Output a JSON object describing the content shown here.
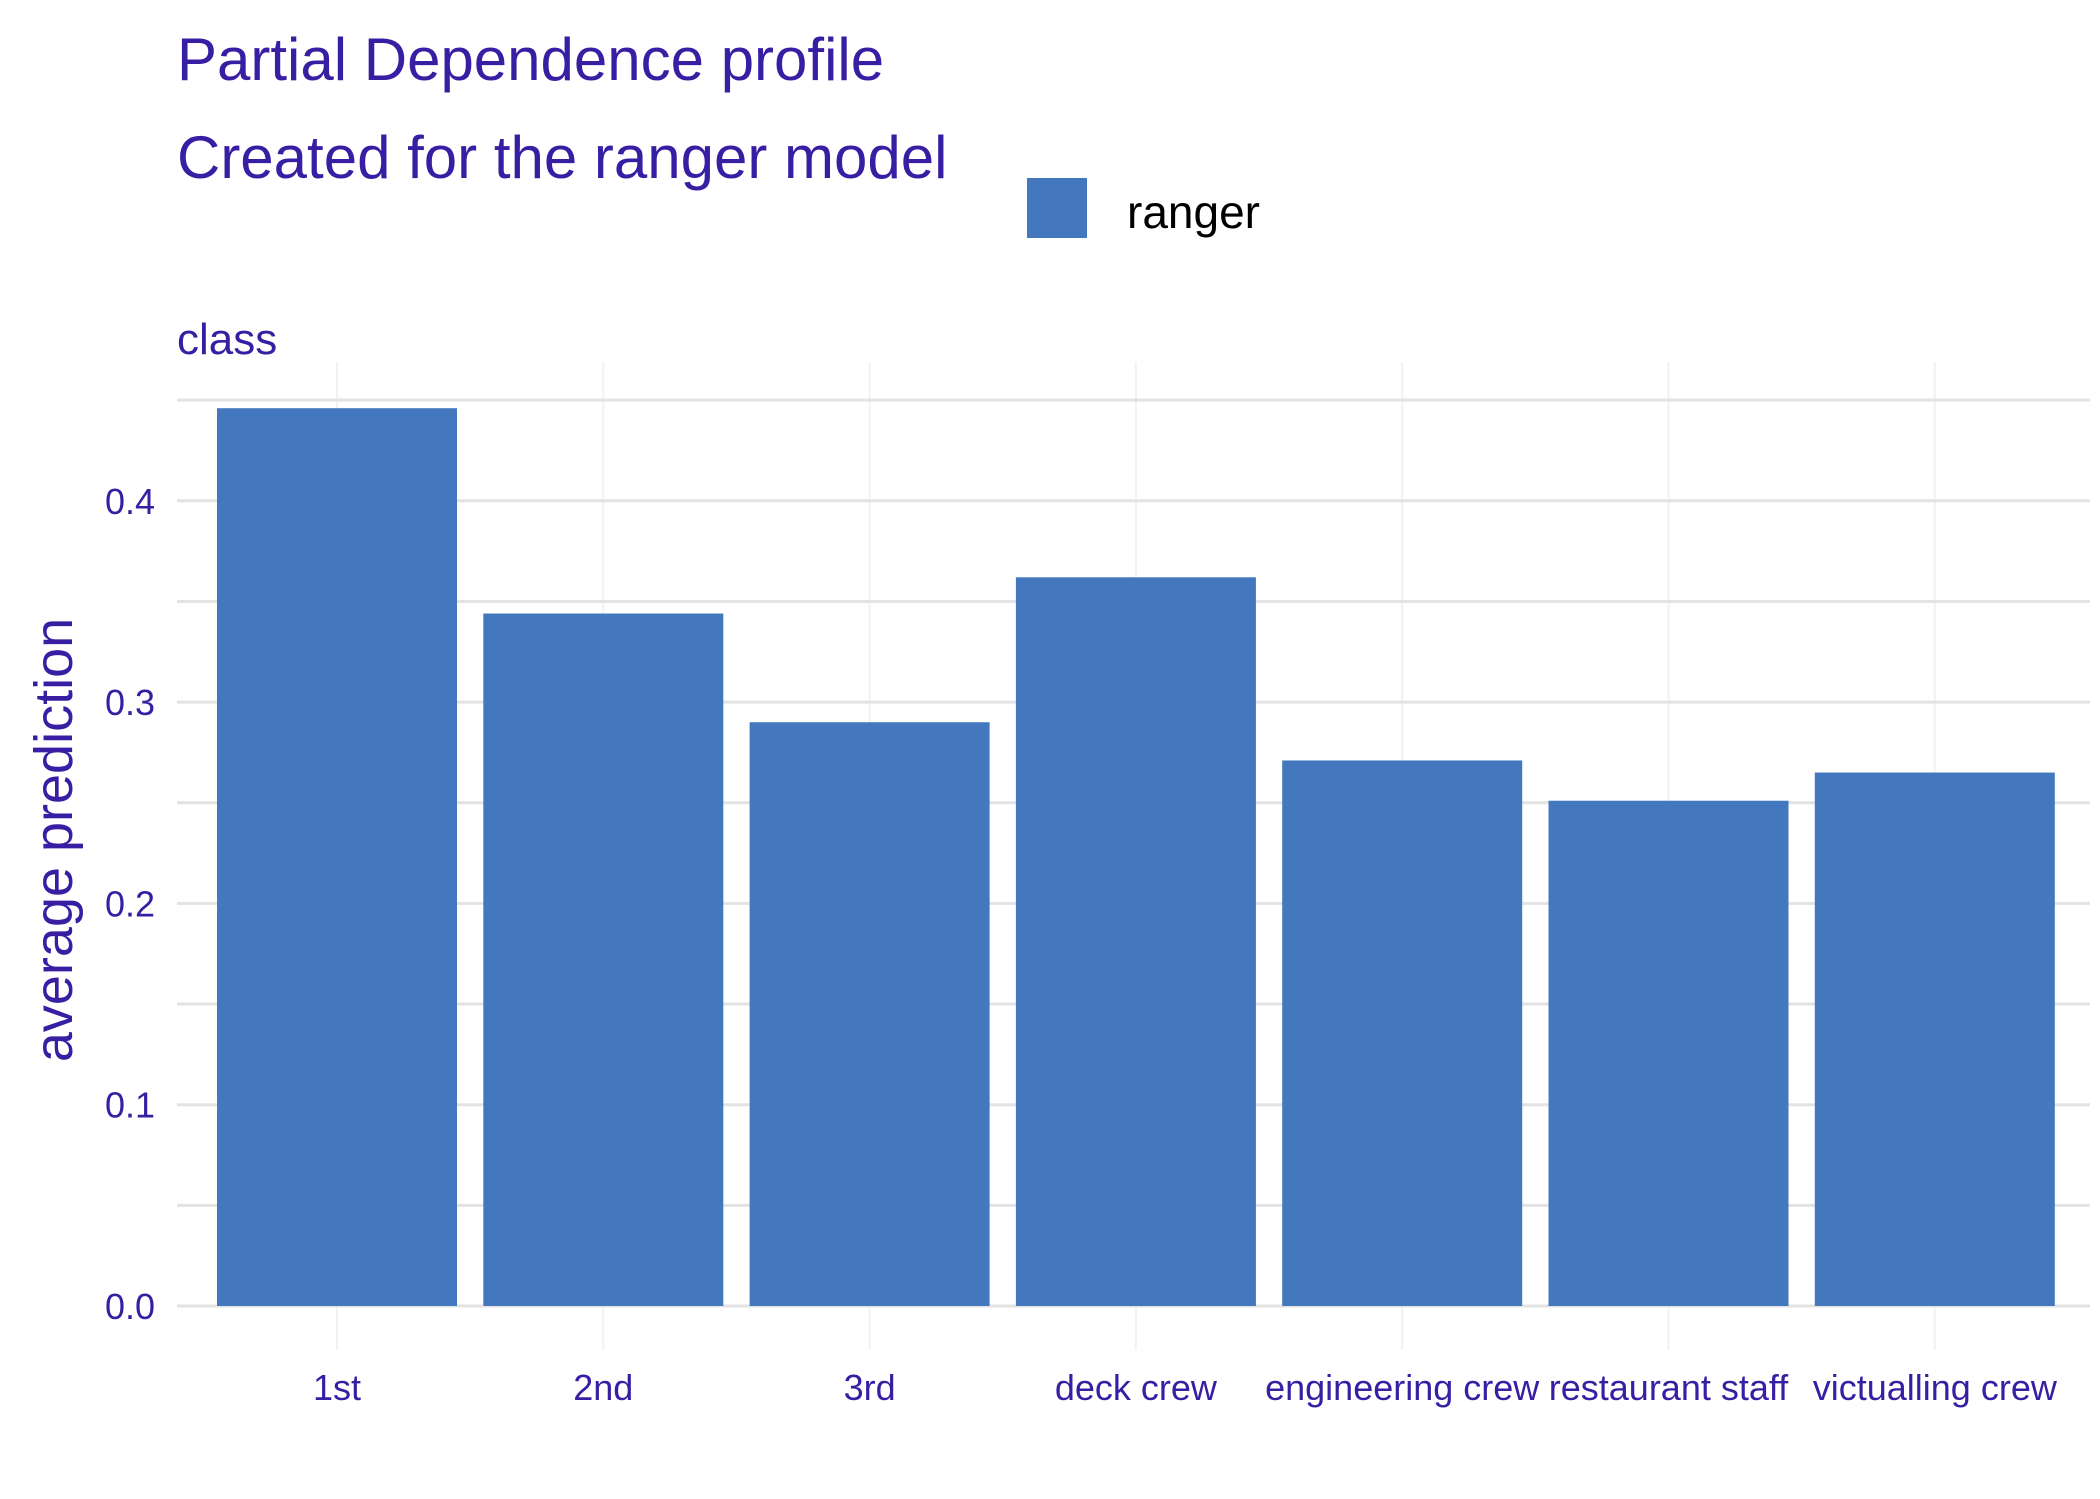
{
  "title": "Partial Dependence profile",
  "subtitle": "Created for the ranger model",
  "colors": {
    "text": "#371EA3",
    "bar": "#4378BF",
    "grid_major": "#E3E3E3",
    "grid_minor": "#F2F2F2"
  },
  "legend": {
    "label": "ranger"
  },
  "chart_data": {
    "type": "bar",
    "panel_title": "class",
    "ylabel": "average prediction",
    "xlabel": "",
    "categories": [
      "1st",
      "2nd",
      "3rd",
      "deck crew",
      "engineering crew",
      "restaurant staff",
      "victualling crew"
    ],
    "series": [
      {
        "name": "ranger",
        "values": [
          0.446,
          0.344,
          0.29,
          0.362,
          0.271,
          0.251,
          0.265
        ]
      }
    ],
    "ylim": [
      0,
      0.45
    ],
    "yticks": [
      0.0,
      0.1,
      0.2,
      0.3,
      0.4
    ],
    "ytick_labels": [
      "0.0",
      "0.1",
      "0.2",
      "0.3",
      "0.4"
    ],
    "grid": true,
    "legend_position": "top"
  }
}
